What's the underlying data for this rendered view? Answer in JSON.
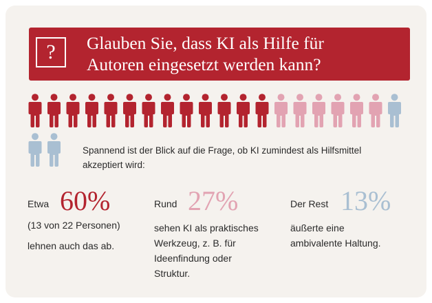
{
  "question": {
    "icon": "?",
    "lines": [
      "Glauben Sie, dass KI als Hilfe für",
      "Autoren eingesetzt werden kann?"
    ]
  },
  "intro": {
    "lines": [
      "Spannend ist der Blick auf die Frage, ob KI zumindest als Hilfsmittel",
      "akzeptiert wird:"
    ]
  },
  "stats": [
    {
      "prefix": "Etwa",
      "percent": "60%",
      "lines": [
        "(13 von 22 Personen)",
        "lehnen auch das ab."
      ]
    },
    {
      "prefix": "Rund",
      "percent": "27%",
      "lines": [
        "sehen KI als praktisches",
        "Werkzeug, z. B. für",
        "Ideenfindung oder",
        "Struktur."
      ]
    },
    {
      "prefix": "Der Rest",
      "percent": "13%",
      "lines": [
        "äußerte eine",
        "ambivalente Haltung."
      ]
    }
  ],
  "colors": {
    "reject": "#b3242f",
    "practical": "#e2a3b2",
    "ambivalent": "#a9bfd2",
    "banner": "#b3242f",
    "background": "#f5f2ee"
  },
  "chart_data": {
    "type": "pictogram",
    "total": 22,
    "series": [
      {
        "name": "lehnen auch das ab",
        "count": 13,
        "percent": 60,
        "color": "#b3242f"
      },
      {
        "name": "sehen KI als praktisches Werkzeug",
        "count": 6,
        "percent": 27,
        "color": "#e2a3b2"
      },
      {
        "name": "äußerte eine ambivalente Haltung",
        "count": 3,
        "percent": 13,
        "color": "#a9bfd2"
      }
    ]
  }
}
